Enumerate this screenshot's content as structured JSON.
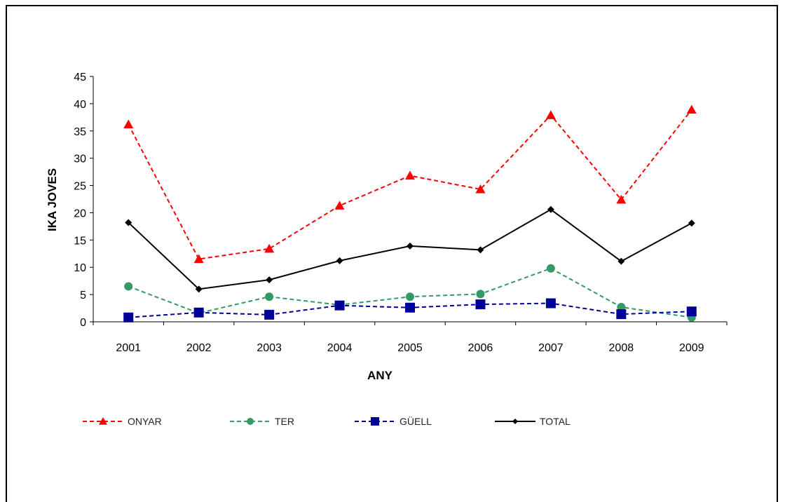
{
  "chart_data": {
    "type": "line",
    "title": "",
    "xlabel": "ANY",
    "ylabel": "IKA JOVES",
    "x": [
      "2001",
      "2002",
      "2003",
      "2004",
      "2005",
      "2006",
      "2007",
      "2008",
      "2009"
    ],
    "ylim": [
      0,
      45
    ],
    "yticks": [
      0,
      5,
      10,
      15,
      20,
      25,
      30,
      35,
      40,
      45
    ],
    "grid": false,
    "legend_position": "bottom",
    "series": [
      {
        "name": "ONYAR",
        "color": "#ff0000",
        "dash": "dashed",
        "marker": "triangle",
        "values": [
          36.2,
          11.5,
          13.4,
          21.3,
          26.8,
          24.3,
          37.9,
          22.4,
          38.9
        ]
      },
      {
        "name": "TER",
        "color": "#339966",
        "dash": "dashed",
        "marker": "circle",
        "values": [
          6.5,
          1.6,
          4.6,
          3.1,
          4.6,
          5.1,
          9.8,
          2.7,
          0.8
        ]
      },
      {
        "name": "GÜELL",
        "color": "#000099",
        "dash": "dashed",
        "marker": "square",
        "values": [
          0.8,
          1.7,
          1.3,
          3.0,
          2.6,
          3.2,
          3.4,
          1.4,
          1.9
        ]
      },
      {
        "name": "TOTAL",
        "color": "#000000",
        "dash": "solid",
        "marker": "diamond",
        "values": [
          18.2,
          6.0,
          7.7,
          11.2,
          13.9,
          13.2,
          20.6,
          11.1,
          18.1
        ]
      }
    ]
  }
}
